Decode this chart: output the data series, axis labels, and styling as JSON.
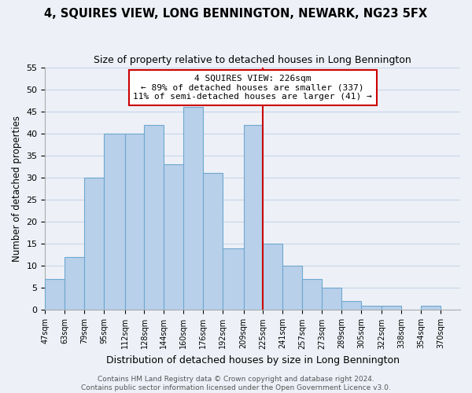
{
  "title": "4, SQUIRES VIEW, LONG BENNINGTON, NEWARK, NG23 5FX",
  "subtitle": "Size of property relative to detached houses in Long Bennington",
  "xlabel": "Distribution of detached houses by size in Long Bennington",
  "ylabel": "Number of detached properties",
  "bar_values": [
    7,
    12,
    30,
    40,
    40,
    42,
    33,
    46,
    31,
    14,
    42,
    15,
    10,
    7,
    5,
    2,
    1,
    1,
    1
  ],
  "bar_left_edges": [
    47,
    63,
    79,
    95,
    112,
    128,
    144,
    160,
    176,
    192,
    209,
    225,
    241,
    257,
    273,
    289,
    305,
    322,
    354
  ],
  "bar_widths": [
    16,
    16,
    16,
    17,
    16,
    16,
    16,
    16,
    16,
    17,
    16,
    16,
    16,
    16,
    16,
    16,
    17,
    16,
    16
  ],
  "tick_positions": [
    47,
    63,
    79,
    95,
    112,
    128,
    144,
    160,
    176,
    192,
    209,
    225,
    241,
    257,
    273,
    289,
    305,
    322,
    338,
    354,
    370
  ],
  "tick_labels": [
    "47sqm",
    "63sqm",
    "79sqm",
    "95sqm",
    "112sqm",
    "128sqm",
    "144sqm",
    "160sqm",
    "176sqm",
    "192sqm",
    "209sqm",
    "225sqm",
    "241sqm",
    "257sqm",
    "273sqm",
    "289sqm",
    "305sqm",
    "322sqm",
    "338sqm",
    "354sqm",
    "370sqm"
  ],
  "vline_x": 225,
  "xlim": [
    47,
    386
  ],
  "ylim": [
    0,
    55
  ],
  "yticks": [
    0,
    5,
    10,
    15,
    20,
    25,
    30,
    35,
    40,
    45,
    50,
    55
  ],
  "bar_color": "#b8d0ea",
  "bar_edge_color": "#6fa8d0",
  "vline_color": "#cc0000",
  "grid_color": "#c8d4e8",
  "background_color": "#edf1f7",
  "ann_line1": "4 SQUIRES VIEW: 226sqm",
  "ann_line2": "← 89% of detached houses are smaller (337)",
  "ann_line3": "11% of semi-detached houses are larger (41) →",
  "footer_line1": "Contains HM Land Registry data © Crown copyright and database right 2024.",
  "footer_line2": "Contains public sector information licensed under the Open Government Licence v3.0.",
  "title_fontsize": 10.5,
  "subtitle_fontsize": 9,
  "xlabel_fontsize": 9,
  "ylabel_fontsize": 8.5,
  "annotation_fontsize": 8,
  "tick_fontsize": 7,
  "ytick_fontsize": 8,
  "footer_fontsize": 6.5
}
